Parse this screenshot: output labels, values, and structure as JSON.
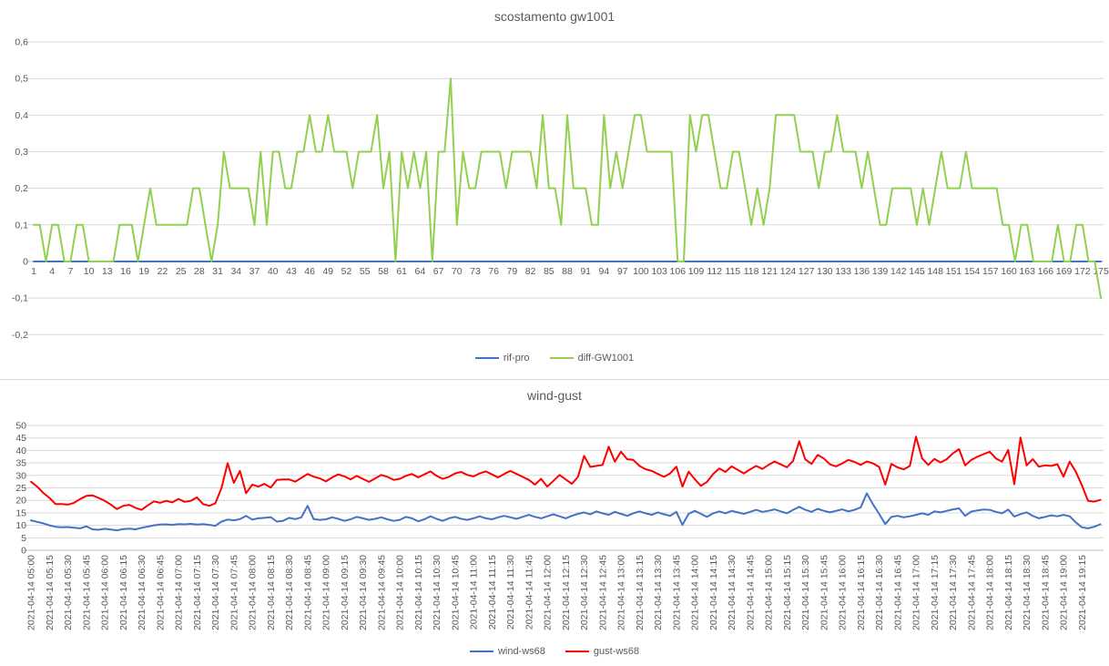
{
  "chart_data": [
    {
      "type": "line",
      "title": "scostamento gw1001",
      "xlabel": "",
      "ylabel": "",
      "ylim": [
        -0.2,
        0.6
      ],
      "grid": true,
      "legend_position": "bottom",
      "x_range": [
        1,
        175
      ],
      "points_per_label": 3,
      "y_ticks": [
        {
          "label": "0,6",
          "value": 0.6
        },
        {
          "label": "0,5",
          "value": 0.5
        },
        {
          "label": "0,4",
          "value": 0.4
        },
        {
          "label": "0,3",
          "value": 0.3
        },
        {
          "label": "0,2",
          "value": 0.2
        },
        {
          "label": "0,1",
          "value": 0.1
        },
        {
          "label": "0",
          "value": 0
        },
        {
          "label": "-0,1",
          "value": -0.1
        },
        {
          "label": "-0,2",
          "value": -0.2
        }
      ],
      "x_tick_labels": [
        "1",
        "4",
        "7",
        "10",
        "13",
        "16",
        "19",
        "22",
        "25",
        "28",
        "31",
        "34",
        "37",
        "40",
        "43",
        "46",
        "49",
        "52",
        "55",
        "58",
        "61",
        "64",
        "67",
        "70",
        "73",
        "76",
        "79",
        "82",
        "85",
        "88",
        "91",
        "94",
        "97",
        "100",
        "103",
        "106",
        "109",
        "112",
        "115",
        "118",
        "121",
        "124",
        "127",
        "130",
        "133",
        "136",
        "139",
        "142",
        "145",
        "148",
        "151",
        "154",
        "157",
        "160",
        "163",
        "166",
        "169",
        "172",
        "175"
      ],
      "series": [
        {
          "name": "rif-pro",
          "color": "#4472c4",
          "values": [
            0,
            0,
            0,
            0,
            0,
            0,
            0,
            0,
            0,
            0,
            0,
            0,
            0,
            0,
            0,
            0,
            0,
            0,
            0,
            0,
            0,
            0,
            0,
            0,
            0,
            0,
            0,
            0,
            0,
            0,
            0,
            0,
            0,
            0,
            0,
            0,
            0,
            0,
            0,
            0,
            0,
            0,
            0,
            0,
            0,
            0,
            0,
            0,
            0,
            0,
            0,
            0,
            0,
            0,
            0,
            0,
            0,
            0,
            0,
            0,
            0,
            0,
            0,
            0,
            0,
            0,
            0,
            0,
            0,
            0,
            0,
            0,
            0,
            0,
            0,
            0,
            0,
            0,
            0,
            0,
            0,
            0,
            0,
            0,
            0,
            0,
            0,
            0,
            0,
            0,
            0,
            0,
            0,
            0,
            0,
            0,
            0,
            0,
            0,
            0,
            0,
            0,
            0,
            0,
            0,
            0,
            0,
            0,
            0,
            0,
            0,
            0,
            0,
            0,
            0,
            0,
            0,
            0,
            0,
            0,
            0,
            0,
            0,
            0,
            0,
            0,
            0,
            0,
            0,
            0,
            0,
            0,
            0,
            0,
            0,
            0,
            0,
            0,
            0,
            0,
            0,
            0,
            0,
            0,
            0,
            0,
            0,
            0,
            0,
            0,
            0,
            0,
            0,
            0,
            0,
            0,
            0,
            0,
            0,
            0,
            0,
            0,
            0,
            0,
            0,
            0,
            0,
            0,
            0,
            0,
            0,
            0,
            0,
            0,
            0
          ]
        },
        {
          "name": "diff-GW1001",
          "color": "#92d050",
          "values": [
            0.1,
            0.1,
            0,
            0.1,
            0.1,
            0,
            0,
            0.1,
            0.1,
            0,
            0,
            0,
            0,
            0,
            0.1,
            0.1,
            0.1,
            0,
            0.1,
            0.2,
            0.1,
            0.1,
            0.1,
            0.1,
            0.1,
            0.1,
            0.2,
            0.2,
            0.1,
            0,
            0.1,
            0.3,
            0.2,
            0.2,
            0.2,
            0.2,
            0.1,
            0.3,
            0.1,
            0.3,
            0.3,
            0.2,
            0.2,
            0.3,
            0.3,
            0.4,
            0.3,
            0.3,
            0.4,
            0.3,
            0.3,
            0.3,
            0.2,
            0.3,
            0.3,
            0.3,
            0.4,
            0.2,
            0.3,
            0,
            0.3,
            0.2,
            0.3,
            0.2,
            0.3,
            0,
            0.3,
            0.3,
            0.5,
            0.1,
            0.3,
            0.2,
            0.2,
            0.3,
            0.3,
            0.3,
            0.3,
            0.2,
            0.3,
            0.3,
            0.3,
            0.3,
            0.2,
            0.4,
            0.2,
            0.2,
            0.1,
            0.4,
            0.2,
            0.2,
            0.2,
            0.1,
            0.1,
            0.4,
            0.2,
            0.3,
            0.2,
            0.3,
            0.4,
            0.4,
            0.3,
            0.3,
            0.3,
            0.3,
            0.3,
            0,
            0,
            0.4,
            0.3,
            0.4,
            0.4,
            0.3,
            0.2,
            0.2,
            0.3,
            0.3,
            0.2,
            0.1,
            0.2,
            0.1,
            0.2,
            0.4,
            0.4,
            0.4,
            0.4,
            0.3,
            0.3,
            0.3,
            0.2,
            0.3,
            0.3,
            0.4,
            0.3,
            0.3,
            0.3,
            0.2,
            0.3,
            0.2,
            0.1,
            0.1,
            0.2,
            0.2,
            0.2,
            0.2,
            0.1,
            0.2,
            0.1,
            0.2,
            0.3,
            0.2,
            0.2,
            0.2,
            0.3,
            0.2,
            0.2,
            0.2,
            0.2,
            0.2,
            0.1,
            0.1,
            0,
            0.1,
            0.1,
            0,
            0,
            0,
            0,
            0.1,
            0,
            0,
            0.1,
            0.1,
            0,
            0,
            -0.1
          ]
        }
      ]
    },
    {
      "type": "line",
      "title": "wind-gust",
      "xlabel": "",
      "ylabel": "",
      "ylim": [
        0,
        50
      ],
      "grid": true,
      "legend_position": "bottom",
      "points_per_label": 3,
      "date_prefix": "2021-04-14 ",
      "y_ticks": [
        {
          "label": "50",
          "value": 50
        },
        {
          "label": "45",
          "value": 45
        },
        {
          "label": "40",
          "value": 40
        },
        {
          "label": "35",
          "value": 35
        },
        {
          "label": "30",
          "value": 30
        },
        {
          "label": "25",
          "value": 25
        },
        {
          "label": "20",
          "value": 20
        },
        {
          "label": "15",
          "value": 15
        },
        {
          "label": "10",
          "value": 10
        },
        {
          "label": "5",
          "value": 5
        },
        {
          "label": "0",
          "value": 0
        }
      ],
      "times": [
        "05:00",
        "05:15",
        "05:30",
        "05:45",
        "06:00",
        "06:15",
        "06:30",
        "06:45",
        "07:00",
        "07:15",
        "07:30",
        "07:45",
        "08:00",
        "08:15",
        "08:30",
        "08:45",
        "09:00",
        "09:15",
        "09:30",
        "09:45",
        "10:00",
        "10:15",
        "10:30",
        "10:45",
        "11:00",
        "11:15",
        "11:30",
        "11:45",
        "12:00",
        "12:15",
        "12:30",
        "12:45",
        "13:00",
        "13:15",
        "13:30",
        "13:45",
        "14:00",
        "14:15",
        "14:30",
        "14:45",
        "15:00",
        "15:15",
        "15:30",
        "15:45",
        "16:00",
        "16:15",
        "16:30",
        "16:45",
        "17:00",
        "17:15",
        "17:30",
        "17:45",
        "18:00",
        "18:15",
        "18:30",
        "18:45",
        "19:00",
        "19:15"
      ],
      "series": [
        {
          "name": "wind-ws68",
          "color": "#4472c4",
          "values": [
            12,
            11.4,
            10.8,
            10,
            9.4,
            9.2,
            9.3,
            9,
            8.8,
            9.6,
            8.4,
            8.2,
            8.6,
            8.3,
            8,
            8.5,
            8.7,
            8.4,
            9,
            9.5,
            10,
            10.3,
            10.4,
            10.2,
            10.5,
            10.4,
            10.6,
            10.3,
            10.5,
            10.2,
            9.8,
            11.5,
            12.3,
            12,
            12.5,
            13.8,
            12.3,
            12.8,
            13,
            13.3,
            11.5,
            11.8,
            13,
            12.5,
            13.2,
            17.8,
            12.5,
            12.2,
            12.4,
            13.2,
            12.6,
            11.8,
            12.4,
            13.4,
            12.8,
            12.2,
            12.6,
            13.2,
            12.4,
            11.8,
            12.2,
            13.4,
            12.8,
            11.6,
            12.4,
            13.6,
            12.6,
            11.8,
            12.8,
            13.4,
            12.6,
            12.2,
            12.8,
            13.6,
            12.8,
            12.4,
            13.2,
            13.8,
            13.2,
            12.6,
            13.4,
            14.2,
            13.4,
            12.8,
            13.6,
            14.4,
            13.6,
            12.8,
            13.8,
            14.6,
            15.2,
            14.4,
            15.6,
            14.8,
            14.2,
            15.4,
            14.6,
            13.8,
            14.8,
            15.6,
            14.8,
            14.2,
            15.2,
            14.4,
            13.8,
            15.4,
            10.2,
            14.6,
            15.8,
            14.6,
            13.4,
            14.8,
            15.6,
            14.8,
            15.8,
            15.2,
            14.6,
            15.4,
            16.2,
            15.4,
            15.8,
            16.4,
            15.6,
            14.8,
            16.2,
            17.4,
            16.2,
            15.4,
            16.6,
            15.8,
            15.2,
            15.8,
            16.4,
            15.6,
            16.2,
            17.2,
            22.8,
            18.4,
            14.6,
            10.5,
            13.4,
            13.8,
            13.2,
            13.6,
            14.2,
            14.8,
            14.2,
            15.6,
            15.2,
            15.8,
            16.4,
            16.8,
            13.8,
            15.5,
            16,
            16.3,
            16.2,
            15.4,
            14.8,
            16.3,
            13.5,
            14.5,
            15.2,
            13.8,
            12.8,
            13.4,
            14,
            13.6,
            14.2,
            13.6,
            11.2,
            9.2,
            8.8,
            9.4,
            10.4
          ]
        },
        {
          "name": "gust-ws68",
          "color": "#ff0000",
          "values": [
            27.5,
            25.5,
            23,
            21,
            18.5,
            18.5,
            18.3,
            19,
            20.5,
            21.8,
            22,
            21,
            19.8,
            18.3,
            16.5,
            17.8,
            18.2,
            17,
            16.2,
            18,
            19.6,
            19,
            19.8,
            19.2,
            20.6,
            19.4,
            19.8,
            21.2,
            18.5,
            17.8,
            18.8,
            25,
            34.9,
            27,
            31.8,
            22.9,
            26.3,
            25.5,
            26.6,
            25.1,
            28.2,
            28.4,
            28.4,
            27.5,
            29,
            30.6,
            29.5,
            28.8,
            27.6,
            29.2,
            30.4,
            29.6,
            28.4,
            29.8,
            28.6,
            27.4,
            28.8,
            30.2,
            29.4,
            28.2,
            28.6,
            29.8,
            30.6,
            29.2,
            30.4,
            31.6,
            29.8,
            28.6,
            29.4,
            30.8,
            31.4,
            30.2,
            29.6,
            30.8,
            31.6,
            30.4,
            29.2,
            30.6,
            31.8,
            30.6,
            29.4,
            28.2,
            26.3,
            28.6,
            25.5,
            27.8,
            30.2,
            28.4,
            26.6,
            29.4,
            37.8,
            33.4,
            33.8,
            34.2,
            41.5,
            35.5,
            39.5,
            36.5,
            36.2,
            33.8,
            32.5,
            31.8,
            30.6,
            29.4,
            30.8,
            33.5,
            25.5,
            31.5,
            28.5,
            25.8,
            27.4,
            30.6,
            32.8,
            31.4,
            33.6,
            32.2,
            30.8,
            32.4,
            33.8,
            32.6,
            34.2,
            35.6,
            34.4,
            33.2,
            35.8,
            43.7,
            36.4,
            34.6,
            38.2,
            36.8,
            34.4,
            33.6,
            34.8,
            36.2,
            35.4,
            34.2,
            35.6,
            34.8,
            33.4,
            26.3,
            34.6,
            33.2,
            32.4,
            33.8,
            45.5,
            36.8,
            34.2,
            36.6,
            35.2,
            36.5,
            38.8,
            40.5,
            34,
            36.2,
            37.5,
            38.5,
            39.5,
            36.8,
            35.5,
            40.2,
            26.5,
            45.2,
            34,
            36.5,
            33.5,
            34,
            33.8,
            34.5,
            29.5,
            35.5,
            31.5,
            26,
            19.8,
            19.5,
            20.2
          ]
        }
      ]
    }
  ],
  "colors": {
    "gridline": "#d9d9d9",
    "axis_line": "#bfbfbf",
    "text": "#595959",
    "rif_pro": "#4472c4",
    "diff_gw1001": "#92d050",
    "wind": "#4472c4",
    "gust": "#ff0000"
  }
}
